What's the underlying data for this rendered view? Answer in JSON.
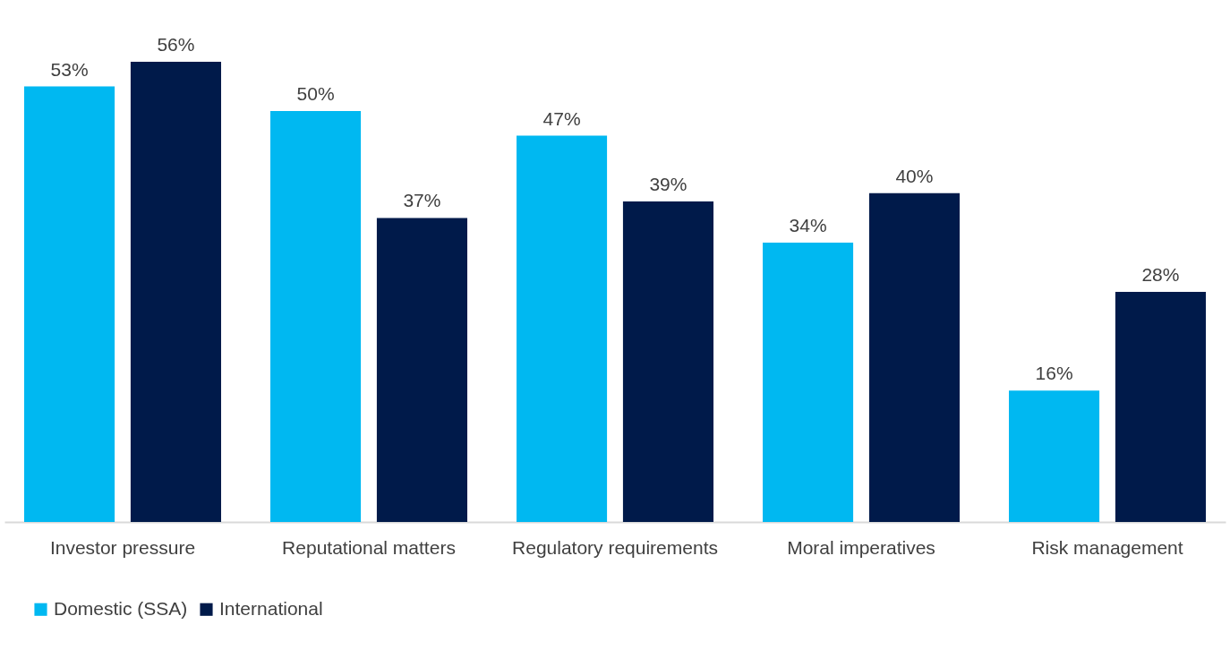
{
  "chart_data": {
    "type": "bar",
    "categories": [
      "Investor pressure",
      "Reputational matters",
      "Regulatory requirements",
      "Moral imperatives",
      "Risk management"
    ],
    "series": [
      {
        "name": "Domestic (SSA)",
        "color": "#00b8f1",
        "values": [
          53,
          50,
          47,
          34,
          16
        ],
        "value_labels": [
          "53%",
          "50%",
          "47%",
          "34%",
          "16%"
        ]
      },
      {
        "name": "International",
        "color": "#001a4a",
        "values": [
          56,
          37,
          39,
          40,
          28
        ],
        "value_labels": [
          "56%",
          "37%",
          "39%",
          "40%",
          "28%"
        ]
      }
    ],
    "legend": "bottom"
  }
}
